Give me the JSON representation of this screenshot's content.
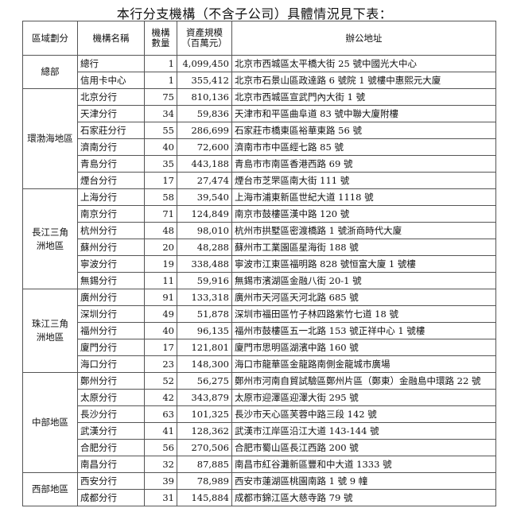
{
  "title": "本行分支機構（不含子公司）具體情況見下表：",
  "headers": {
    "region": "區域劃分",
    "name": "機構名稱",
    "count": [
      "機構",
      "數量"
    ],
    "assets": [
      "資產規模",
      "（百萬元）"
    ],
    "address": "辦公地址"
  },
  "groups": [
    {
      "region": "總部",
      "rows": [
        {
          "name": "總行",
          "count": "1",
          "assets": "4,099,450",
          "address": "北京市西城區太平橋大街 25 號中國光大中心"
        },
        {
          "name": "信用卡中心",
          "count": "1",
          "assets": "355,412",
          "address": "北京市石景山區政達路 6 號院 1 號樓中惠熙元大廈"
        }
      ]
    },
    {
      "region": "環渤海地區",
      "rows": [
        {
          "name": "北京分行",
          "count": "75",
          "assets": "810,136",
          "address": "北京市西城區宣武門內大街 1 號"
        },
        {
          "name": "天津分行",
          "count": "34",
          "assets": "59,836",
          "address": "天津市和平區曲阜道 83 號中聯大廈附樓"
        },
        {
          "name": "石家莊分行",
          "count": "55",
          "assets": "286,699",
          "address": "石家莊市橋東區裕華東路 56 號"
        },
        {
          "name": "濟南分行",
          "count": "40",
          "assets": "72,600",
          "address": "濟南市市中區經七路 85 號"
        },
        {
          "name": "青島分行",
          "count": "35",
          "assets": "443,188",
          "address": "青島市市南區香港西路 69 號"
        },
        {
          "name": "煙台分行",
          "count": "17",
          "assets": "27,474",
          "address": "煙台市芝罘區南大街 111 號"
        }
      ]
    },
    {
      "region": "長江三角洲地區",
      "rows": [
        {
          "name": "上海分行",
          "count": "58",
          "assets": "39,540",
          "address": "上海市浦東新區世紀大道 1118 號"
        },
        {
          "name": "南京分行",
          "count": "71",
          "assets": "124,849",
          "address": "南京市鼓樓區漢中路 120 號"
        },
        {
          "name": "杭州分行",
          "count": "48",
          "assets": "98,010",
          "address": "杭州市拱墅區密渡橋路 1 號浙商時代大廈"
        },
        {
          "name": "蘇州分行",
          "count": "20",
          "assets": "48,288",
          "address": "蘇州市工業園區星海街 188 號"
        },
        {
          "name": "寧波分行",
          "count": "19",
          "assets": "338,488",
          "address": "寧波市江東區福明路 828 號恒富大廈 1 號樓"
        },
        {
          "name": "無錫分行",
          "count": "11",
          "assets": "59,916",
          "address": "無錫市濱湖區金融八街 20-1 號"
        }
      ]
    },
    {
      "region": "珠江三角洲地區",
      "rows": [
        {
          "name": "廣州分行",
          "count": "91",
          "assets": "133,318",
          "address": "廣州市天河區天河北路 685 號"
        },
        {
          "name": "深圳分行",
          "count": "49",
          "assets": "51,878",
          "address": "深圳市福田區竹子林四路紫竹七道 18 號"
        },
        {
          "name": "福州分行",
          "count": "40",
          "assets": "96,135",
          "address": "福州市鼓樓區五一北路 153 號正祥中心 1 號樓"
        },
        {
          "name": "廈門分行",
          "count": "17",
          "assets": "121,801",
          "address": "廈門市思明區湖濱中路 160 號"
        },
        {
          "name": "海口分行",
          "count": "23",
          "assets": "148,300",
          "address": "海口市龍華區金龍路南側金龍城市廣場"
        }
      ]
    },
    {
      "region": "中部地區",
      "rows": [
        {
          "name": "鄭州分行",
          "count": "52",
          "assets": "56,275",
          "address": "鄭州市河南自貿試驗區鄭州片區（鄭東）金融島中環路 22 號"
        },
        {
          "name": "太原分行",
          "count": "42",
          "assets": "343,879",
          "address": "太原市迎澤區迎澤大街 295 號"
        },
        {
          "name": "長沙分行",
          "count": "63",
          "assets": "101,325",
          "address": "長沙市天心區芙蓉中路三段 142 號"
        },
        {
          "name": "武漢分行",
          "count": "41",
          "assets": "128,362",
          "address": "武漢市江岸區沿江大道 143-144 號"
        },
        {
          "name": "合肥分行",
          "count": "56",
          "assets": "270,506",
          "address": "合肥市蜀山區長江西路 200 號"
        },
        {
          "name": "南昌分行",
          "count": "32",
          "assets": "87,885",
          "address": "南昌市紅谷灘新區豐和中大道 1333 號"
        }
      ]
    },
    {
      "region": "西部地區",
      "rows": [
        {
          "name": "西安分行",
          "count": "39",
          "assets": "78,989",
          "address": "西安市蓮湖區桃園南路 1 號 9 幢"
        },
        {
          "name": "成都分行",
          "count": "31",
          "assets": "145,884",
          "address": "成都市錦江區大慈寺路 79 號"
        }
      ]
    }
  ]
}
